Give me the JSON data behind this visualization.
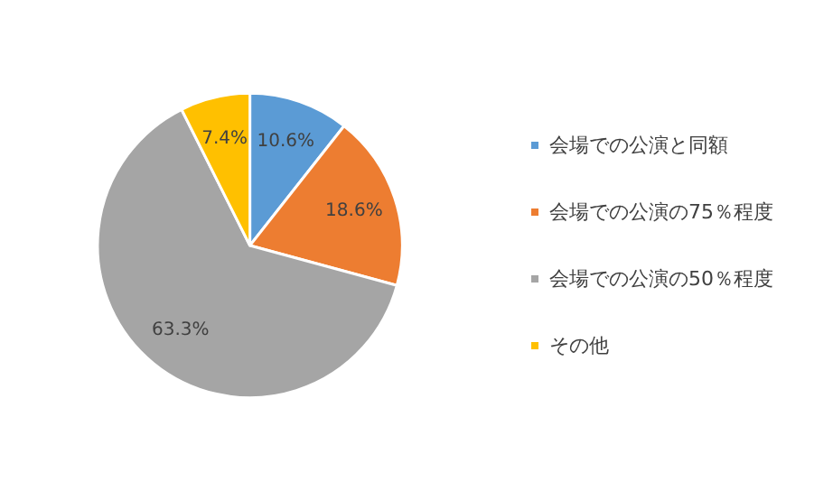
{
  "chart_data": {
    "type": "pie",
    "categories": [
      "会場での公演と同額",
      "会場での公演の75％程度",
      "会場での公演の50％程度",
      "その他"
    ],
    "values": [
      10.6,
      18.6,
      63.3,
      7.4
    ],
    "value_labels": [
      "10.6%",
      "18.6%",
      "63.3%",
      "7.4%"
    ],
    "colors": [
      "#5b9bd5",
      "#ed7d31",
      "#a5a5a5",
      "#ffc000"
    ],
    "legend": "right"
  }
}
